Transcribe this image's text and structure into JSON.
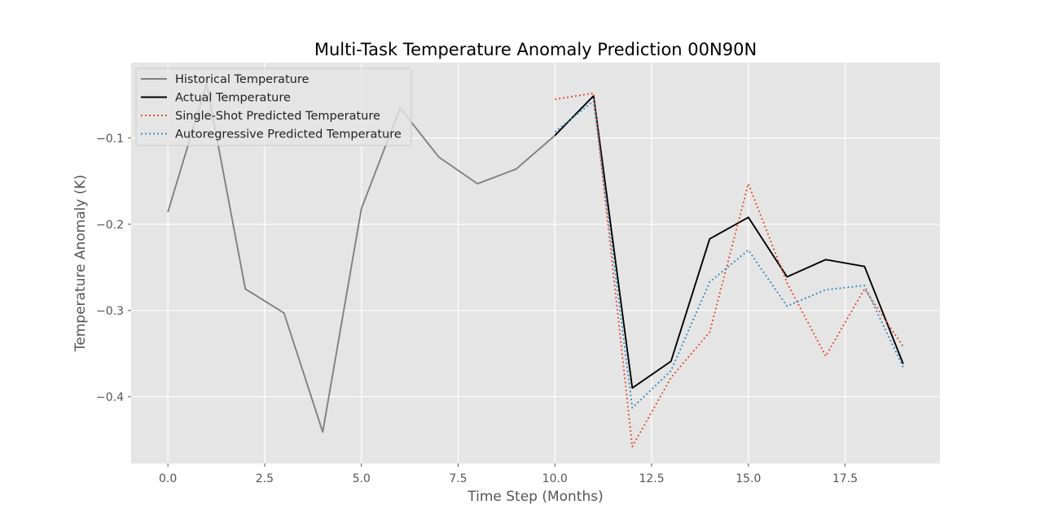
{
  "chart_data": {
    "type": "line",
    "title": "Multi-Task Temperature Anomaly Prediction 00N90N",
    "xlabel": "Time Step (Months)",
    "ylabel": "Temperature Anomaly (K)",
    "xlim": [
      -0.95,
      19.95
    ],
    "ylim": [
      -0.4775,
      -0.0125
    ],
    "xticks": [
      0,
      2.5,
      5,
      7.5,
      10,
      12.5,
      15,
      17.5
    ],
    "xtick_labels": [
      "0.0",
      "2.5",
      "5.0",
      "7.5",
      "10.0",
      "12.5",
      "15.0",
      "17.5"
    ],
    "yticks": [
      -0.1,
      -0.2,
      -0.3,
      -0.4
    ],
    "ytick_labels": [
      "−0.1",
      "−0.2",
      "−0.3",
      "−0.4"
    ],
    "grid": true,
    "legend_position": "top-left",
    "background_color": "#e5e5e5",
    "series": [
      {
        "name": "Historical Temperature",
        "color": "#808080",
        "style": "solid",
        "x": [
          0,
          1,
          2,
          3,
          4,
          5,
          6,
          7,
          8,
          9,
          10
        ],
        "y": [
          -0.186,
          -0.037,
          -0.275,
          -0.303,
          -0.441,
          -0.182,
          -0.065,
          -0.122,
          -0.153,
          -0.136,
          -0.097
        ]
      },
      {
        "name": "Actual Temperature",
        "color": "#000000",
        "style": "solid",
        "x": [
          10,
          11,
          12,
          13,
          14,
          15,
          16,
          17,
          18,
          19
        ],
        "y": [
          -0.097,
          -0.051,
          -0.39,
          -0.359,
          -0.217,
          -0.192,
          -0.261,
          -0.241,
          -0.249,
          -0.362
        ]
      },
      {
        "name": "Single-Shot Predicted Temperature",
        "color": "#e24a33",
        "style": "dotted",
        "x": [
          10,
          11,
          12,
          13,
          14,
          15,
          16,
          17,
          18,
          19
        ],
        "y": [
          -0.055,
          -0.048,
          -0.458,
          -0.378,
          -0.325,
          -0.153,
          -0.268,
          -0.353,
          -0.275,
          -0.342
        ]
      },
      {
        "name": "Autoregressive Predicted Temperature",
        "color": "#348abd",
        "style": "dotted",
        "x": [
          10,
          11,
          12,
          13,
          14,
          15,
          16,
          17,
          18,
          19
        ],
        "y": [
          -0.093,
          -0.057,
          -0.413,
          -0.37,
          -0.267,
          -0.23,
          -0.295,
          -0.276,
          -0.271,
          -0.366
        ]
      }
    ]
  }
}
